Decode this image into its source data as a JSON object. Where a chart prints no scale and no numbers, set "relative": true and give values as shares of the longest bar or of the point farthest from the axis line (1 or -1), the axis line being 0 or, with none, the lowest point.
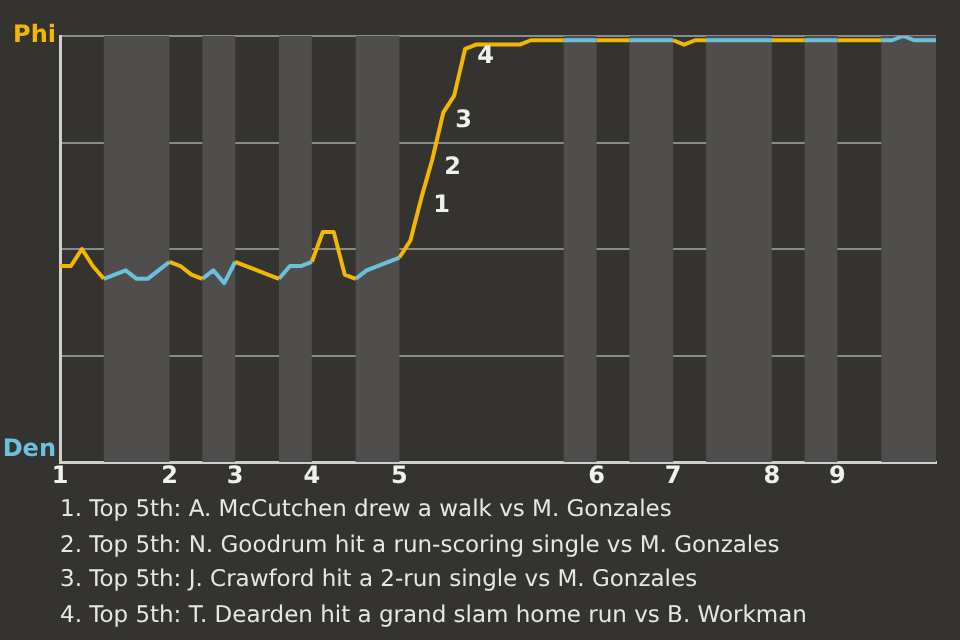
{
  "chart_data": {
    "type": "line",
    "relative": true,
    "categories": [
      "1",
      null,
      null,
      null,
      null,
      null,
      null,
      null,
      null,
      null,
      "2",
      null,
      null,
      null,
      null,
      null,
      "3",
      null,
      null,
      null,
      null,
      null,
      null,
      "4",
      null,
      null,
      null,
      null,
      null,
      null,
      null,
      "5",
      null,
      null,
      null,
      null,
      null,
      null,
      null,
      null,
      null,
      null,
      null,
      null,
      null,
      null,
      null,
      null,
      null,
      "6",
      null,
      null,
      null,
      null,
      null,
      null,
      "7",
      null,
      null,
      null,
      null,
      null,
      null,
      null,
      null,
      "8",
      null,
      null,
      null,
      null,
      null,
      "9",
      null,
      null,
      null,
      null,
      null,
      null,
      null,
      null,
      null
    ],
    "grid": "y",
    "legend": false,
    "marker": "none",
    "series": [
      {
        "color": "#f2b705",
        "values": [
          0.46,
          0.46,
          0.5,
          0.46,
          0.43,
          null,
          null,
          null,
          null,
          null,
          0.47,
          0.46,
          0.44,
          0.43,
          null,
          null,
          0.47,
          0.46,
          0.45,
          0.44,
          0.43,
          null,
          null,
          0.47,
          0.54,
          0.54,
          0.44,
          0.43,
          null,
          null,
          null,
          0.48,
          0.52,
          0.62,
          0.71,
          0.82,
          0.86,
          0.97,
          0.98,
          0.98,
          0.98,
          0.98,
          0.98,
          0.99,
          0.99,
          0.99,
          0.99,
          null,
          null,
          0.99,
          0.99,
          0.99,
          0.99,
          null,
          null,
          null,
          0.99,
          0.98,
          0.99,
          0.99,
          null,
          null,
          null,
          null,
          null,
          0.99,
          0.99,
          0.99,
          0.99,
          null,
          null,
          0.99,
          0.99,
          0.99,
          0.99,
          0.99,
          null,
          null,
          null,
          null,
          null
        ]
      },
      {
        "color": "#6cc0dc",
        "values": [
          null,
          null,
          null,
          null,
          0.43,
          0.44,
          0.45,
          0.43,
          0.43,
          0.45,
          0.47,
          null,
          null,
          0.43,
          0.45,
          0.42,
          0.47,
          null,
          null,
          null,
          0.43,
          0.46,
          0.46,
          0.47,
          null,
          null,
          null,
          0.43,
          0.45,
          0.46,
          0.47,
          0.48,
          null,
          null,
          null,
          null,
          null,
          null,
          null,
          null,
          null,
          null,
          null,
          null,
          null,
          null,
          0.99,
          0.99,
          0.99,
          0.99,
          null,
          null,
          0.99,
          0.99,
          0.99,
          0.99,
          0.99,
          null,
          null,
          0.99,
          0.99,
          0.99,
          0.99,
          0.99,
          0.99,
          0.99,
          null,
          null,
          0.99,
          0.99,
          0.99,
          0.99,
          null,
          null,
          null,
          0.99,
          0.99,
          1.0,
          0.99,
          0.99,
          0.99
        ]
      }
    ],
    "annotations": [
      "Phi",
      "Den",
      "1",
      "2",
      "3",
      "4",
      "1. Top 5th: A. McCutchen drew a walk vs M. Gonzales",
      "2. Top 5th: N. Goodrum hit a run-scoring single vs M. Gonzales",
      "3. Top 5th: J. Crawford hit a 2-run single vs M. Gonzales",
      "4. Top 5th: T. Dearden hit a grand slam home run vs B. Workman"
    ]
  }
}
